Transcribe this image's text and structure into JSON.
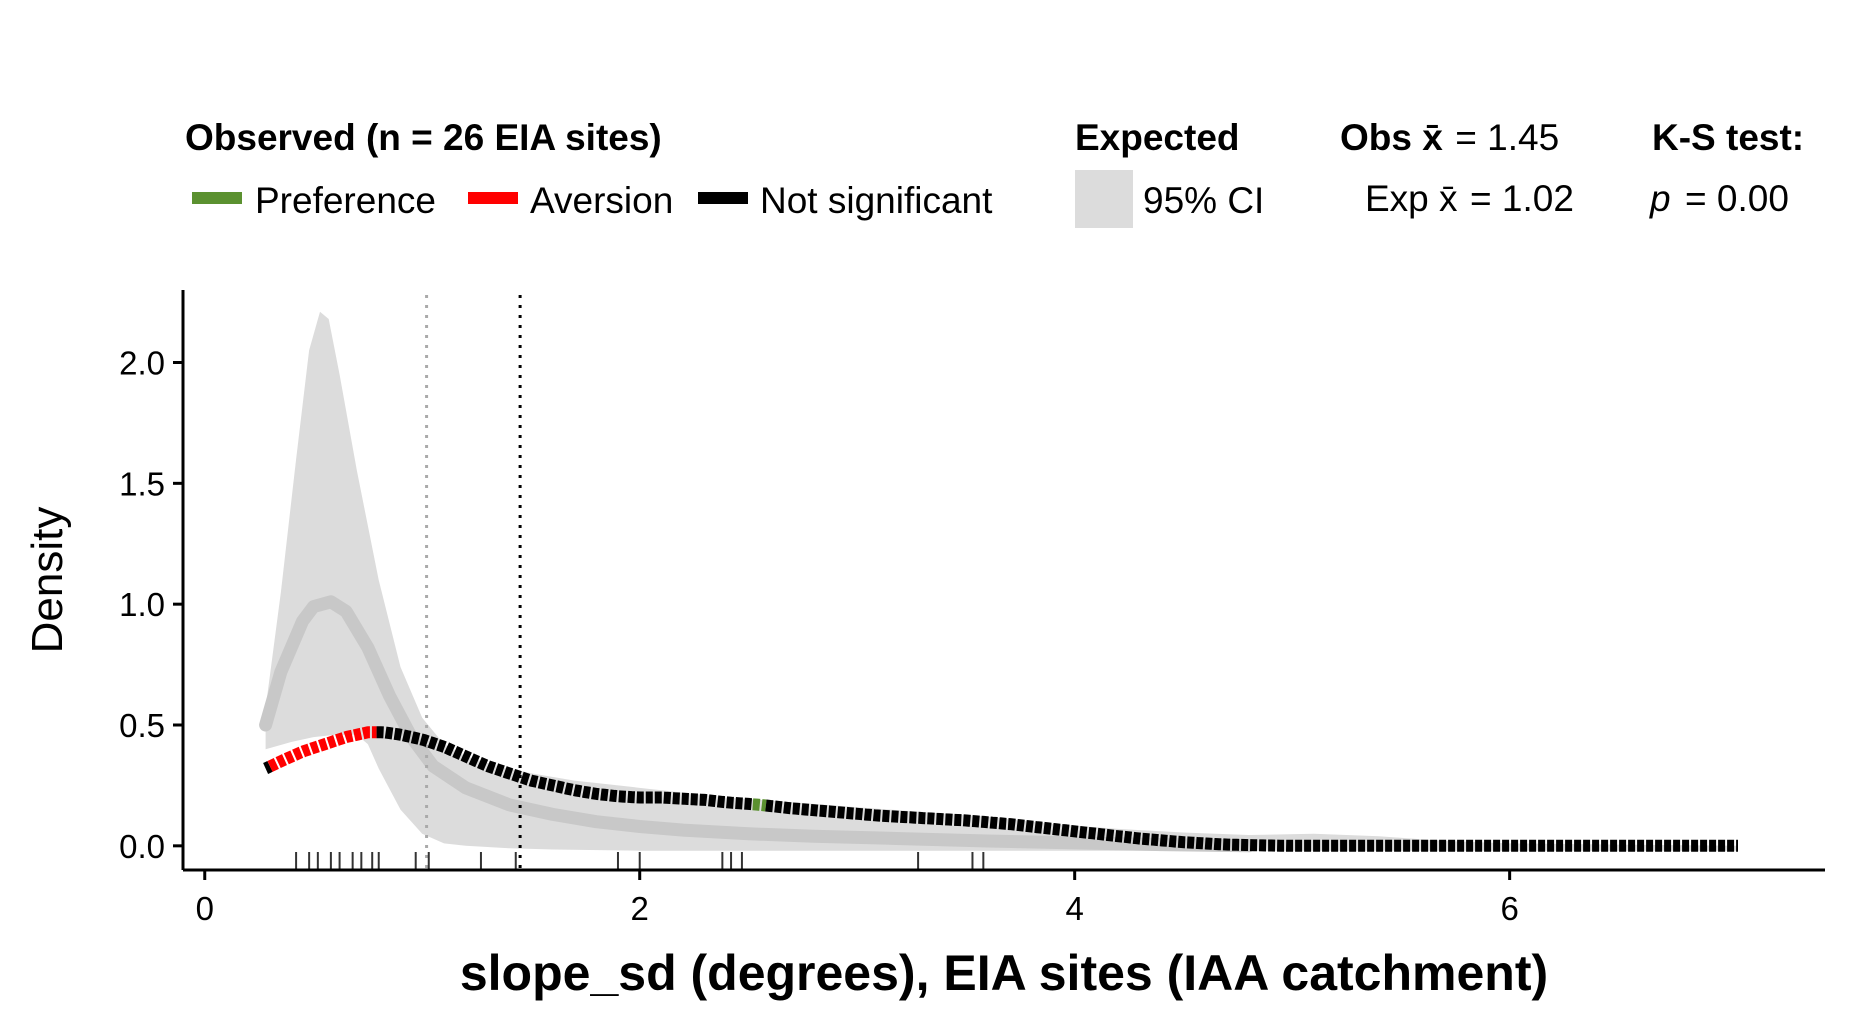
{
  "chart_data": {
    "type": "line",
    "xlabel": "slope_sd (degrees), EIA sites (IAA catchment)",
    "ylabel": "Density",
    "xlim": [
      -0.1,
      7.45
    ],
    "ylim": [
      -0.1,
      2.3
    ],
    "x_ticks": [
      "0",
      "2",
      "4",
      "6"
    ],
    "y_ticks": [
      "0.0",
      "0.5",
      "1.0",
      "1.5",
      "2.0"
    ],
    "legend": {
      "observed_title": "Observed (n = 26 EIA sites)",
      "items": [
        {
          "label": "Preference",
          "color": "#5b9130"
        },
        {
          "label": "Aversion",
          "color": "#ff0000"
        },
        {
          "label": "Not significant",
          "color": "#000000"
        }
      ],
      "expected_title": "Expected",
      "ci_label": "95% CI",
      "ci_color": "#dcdcdc",
      "obs_mean_label": "Obs x̄",
      "obs_mean_value": "= 1.45",
      "exp_mean_label": "Exp x̄",
      "exp_mean_value": "= 1.02",
      "ks_title": "K-S test:",
      "ks_p_label": "p",
      "ks_p_value": "= 0.00"
    },
    "obs_mean": 1.45,
    "exp_mean": 1.02,
    "observed_density": {
      "x": [
        0.28,
        0.35,
        0.45,
        0.55,
        0.65,
        0.75,
        0.82,
        0.9,
        1.0,
        1.1,
        1.2,
        1.3,
        1.4,
        1.5,
        1.6,
        1.7,
        1.8,
        1.9,
        2.0,
        2.1,
        2.2,
        2.3,
        2.4,
        2.55,
        2.7,
        2.9,
        3.1,
        3.3,
        3.5,
        3.7,
        3.9,
        4.1,
        4.3,
        4.5,
        4.7,
        4.85,
        5.0,
        5.3,
        5.6,
        6.0,
        6.5,
        7.05
      ],
      "y": [
        0.32,
        0.35,
        0.39,
        0.42,
        0.45,
        0.47,
        0.47,
        0.46,
        0.44,
        0.41,
        0.37,
        0.33,
        0.3,
        0.27,
        0.25,
        0.23,
        0.215,
        0.205,
        0.2,
        0.2,
        0.195,
        0.19,
        0.18,
        0.17,
        0.155,
        0.14,
        0.125,
        0.115,
        0.105,
        0.09,
        0.07,
        0.05,
        0.03,
        0.015,
        0.005,
        0.002,
        0.0,
        0.0,
        0.0,
        0.0,
        0.0,
        0.0
      ],
      "significance_segments": [
        {
          "from": 0.28,
          "to": 0.3,
          "status": "Not significant"
        },
        {
          "from": 0.3,
          "to": 0.79,
          "status": "Aversion"
        },
        {
          "from": 0.79,
          "to": 2.52,
          "status": "Not significant"
        },
        {
          "from": 2.52,
          "to": 2.58,
          "status": "Preference"
        },
        {
          "from": 2.58,
          "to": 7.05,
          "status": "Not significant"
        }
      ]
    },
    "expected_density": {
      "x": [
        0.28,
        0.35,
        0.45,
        0.5,
        0.58,
        0.65,
        0.75,
        0.85,
        0.95,
        1.05,
        1.2,
        1.4,
        1.6,
        1.8,
        2.0,
        2.2,
        2.5,
        2.8,
        3.2,
        3.6,
        4.0,
        4.4,
        4.8
      ],
      "y": [
        0.5,
        0.72,
        0.93,
        0.99,
        1.01,
        0.97,
        0.82,
        0.62,
        0.45,
        0.33,
        0.24,
        0.17,
        0.13,
        0.1,
        0.08,
        0.065,
        0.05,
        0.04,
        0.03,
        0.02,
        0.012,
        0.005,
        0.0
      ]
    },
    "ci_upper": {
      "x": [
        0.28,
        0.35,
        0.42,
        0.48,
        0.53,
        0.57,
        0.62,
        0.7,
        0.8,
        0.9,
        1.0,
        1.1,
        1.2,
        1.35,
        1.5,
        1.7,
        1.9,
        2.1,
        2.4,
        2.7,
        3.0,
        3.3,
        3.6,
        3.9,
        4.2,
        4.5,
        4.8,
        5.1,
        5.4,
        5.7,
        6.0,
        6.5,
        7.05
      ],
      "y": [
        0.57,
        1.05,
        1.6,
        2.05,
        2.21,
        2.18,
        1.95,
        1.55,
        1.1,
        0.74,
        0.53,
        0.42,
        0.37,
        0.33,
        0.3,
        0.27,
        0.25,
        0.23,
        0.2,
        0.18,
        0.16,
        0.14,
        0.12,
        0.09,
        0.07,
        0.055,
        0.045,
        0.05,
        0.04,
        0.02,
        0.01,
        0.005,
        0.0
      ]
    },
    "ci_lower": {
      "x": [
        0.28,
        0.4,
        0.5,
        0.6,
        0.7,
        0.75,
        0.8,
        0.9,
        1.0,
        1.1,
        1.2,
        1.4,
        1.6,
        2.0,
        2.5,
        3.0,
        4.0,
        5.0,
        6.0,
        7.05
      ],
      "y": [
        0.4,
        0.43,
        0.45,
        0.46,
        0.46,
        0.42,
        0.32,
        0.15,
        0.05,
        0.01,
        0.0,
        -0.01,
        -0.015,
        -0.02,
        -0.02,
        -0.02,
        -0.02,
        -0.02,
        -0.02,
        -0.02
      ]
    },
    "rug": [
      0.42,
      0.48,
      0.52,
      0.58,
      0.62,
      0.68,
      0.72,
      0.77,
      0.8,
      0.97,
      1.03,
      1.27,
      1.43,
      1.9,
      2.0,
      2.38,
      2.42,
      2.47,
      3.28,
      3.53,
      3.58
    ]
  }
}
